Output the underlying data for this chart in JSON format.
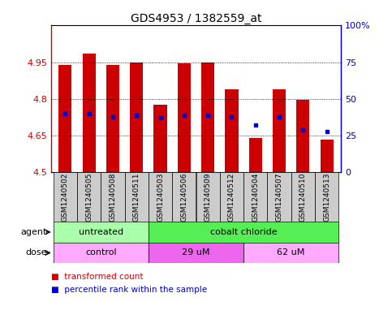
{
  "title": "GDS4953 / 1382559_at",
  "samples": [
    "GSM1240502",
    "GSM1240505",
    "GSM1240508",
    "GSM1240511",
    "GSM1240503",
    "GSM1240506",
    "GSM1240509",
    "GSM1240512",
    "GSM1240504",
    "GSM1240507",
    "GSM1240510",
    "GSM1240513"
  ],
  "transformed_counts": [
    4.94,
    4.985,
    4.94,
    4.95,
    4.775,
    4.945,
    4.95,
    4.84,
    4.64,
    4.84,
    4.795,
    4.635
  ],
  "percentile_ranks": [
    40,
    40,
    38,
    39,
    37,
    39,
    39,
    38,
    32,
    38,
    29,
    28
  ],
  "ymin": 4.5,
  "ymax": 5.1,
  "yticks": [
    4.5,
    4.65,
    4.8,
    4.95
  ],
  "ytick_labels": [
    "4.5",
    "4.65",
    "4.8",
    "4.95"
  ],
  "y2ticks": [
    0,
    25,
    50,
    75,
    100
  ],
  "y2tick_labels": [
    "0",
    "25",
    "50",
    "75",
    "100%"
  ],
  "bar_color": "#cc0000",
  "dot_color": "#0000cc",
  "sample_box_color": "#cccccc",
  "agent_groups": [
    {
      "label": "untreated",
      "start": 0,
      "end": 4,
      "color": "#aaffaa"
    },
    {
      "label": "cobalt chloride",
      "start": 4,
      "end": 12,
      "color": "#55ee55"
    }
  ],
  "dose_groups": [
    {
      "label": "control",
      "start": 0,
      "end": 4,
      "color": "#ffaaff"
    },
    {
      "label": "29 uM",
      "start": 4,
      "end": 8,
      "color": "#ee66ee"
    },
    {
      "label": "62 uM",
      "start": 8,
      "end": 12,
      "color": "#ffaaff"
    }
  ],
  "legend_items": [
    {
      "label": "transformed count",
      "color": "#cc0000"
    },
    {
      "label": "percentile rank within the sample",
      "color": "#0000cc"
    }
  ],
  "xlabel_agent": "agent",
  "xlabel_dose": "dose",
  "bar_width": 0.55,
  "background_color": "#ffffff",
  "axis_label_color_left": "#cc0000",
  "axis_label_color_right": "#0000cc",
  "title_fontsize": 10,
  "tick_fontsize": 8,
  "sample_fontsize": 6.5,
  "group_fontsize": 8,
  "legend_fontsize": 7.5
}
